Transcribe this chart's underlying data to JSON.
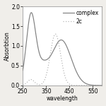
{
  "xlabel": "wavelength",
  "ylabel": "Absorbtion",
  "xlim": [
    250,
    590
  ],
  "ylim": [
    0,
    2.0
  ],
  "xticks": [
    250,
    350,
    450,
    550
  ],
  "yticks": [
    0,
    0.5,
    1.0,
    1.5,
    2.0
  ],
  "legend_entries": [
    "complex",
    "2c"
  ],
  "complex_color": "#808080",
  "ligand_color": "#b0b0b0",
  "background_color": "#f0eeea",
  "plot_bg_color": "#ffffff",
  "complex_line_style": "-",
  "ligand_line_style": ":",
  "axis_fontsize": 5.5,
  "tick_fontsize": 5.5,
  "legend_fontsize": 5.5
}
